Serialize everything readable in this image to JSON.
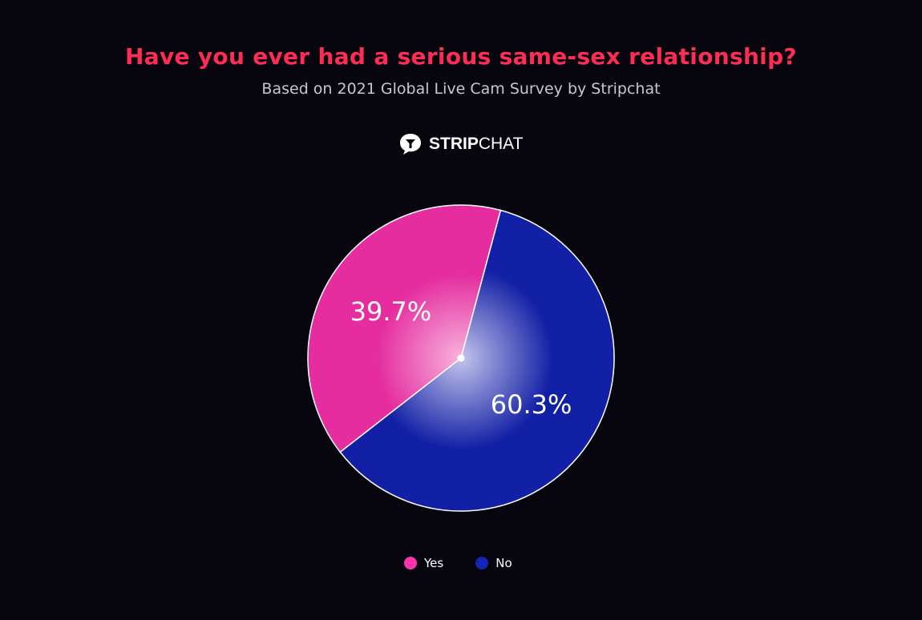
{
  "chart_data": {
    "type": "pie",
    "title": "Have you ever had a serious same-sex relationship?",
    "subtitle": "Based on 2021 Global Live Cam Survey by Stripchat",
    "categories": [
      "Yes",
      "No"
    ],
    "values": [
      39.7,
      60.3
    ],
    "labels": [
      "39.7%",
      "60.3%"
    ],
    "colors": [
      "#e52d9f",
      "#1220a5"
    ],
    "legend_position": "bottom"
  },
  "logo": {
    "bold": "STRIP",
    "regular": "CHAT"
  }
}
